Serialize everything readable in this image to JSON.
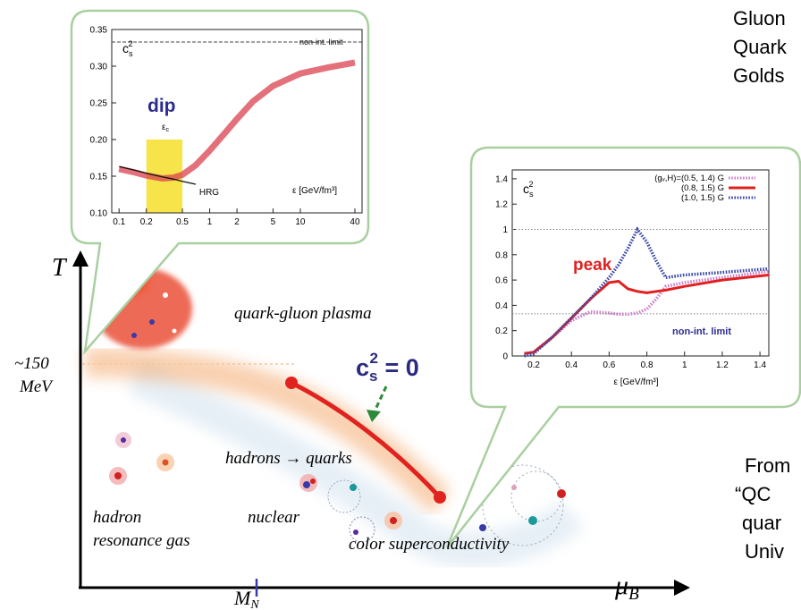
{
  "chart_data": [
    {
      "type": "line",
      "ylabel": {
        "main": "c",
        "sub": "s",
        "sup": "2"
      },
      "xlabel": "ε [GeV/fm³]",
      "annotations": {
        "dip": "dip",
        "eps_c": {
          "main": "ε",
          "sub": "c"
        },
        "limit": "non-int. limit"
      },
      "xscale": "log",
      "xlim": [
        0.083,
        48
      ],
      "ylim": [
        0.1,
        0.35
      ],
      "xticks": [
        0.1,
        0.2,
        0.5,
        1,
        2,
        5,
        10,
        40
      ],
      "yticks": [
        {
          "value": 0.1,
          "label": "0.10"
        },
        0.15,
        {
          "value": 0.2,
          "label": "0.20"
        },
        0.25,
        {
          "value": 0.3,
          "label": "0.30"
        },
        0.35
      ],
      "hlines": [
        0.333
      ],
      "highlight": {
        "xrange": [
          0.2,
          0.5
        ],
        "yrange": [
          0.1,
          0.2
        ],
        "color": "#f7e34a"
      },
      "x": [
        0.1,
        0.15,
        0.2,
        0.3,
        0.4,
        0.5,
        0.7,
        1,
        1.5,
        2,
        3,
        5,
        10,
        20,
        40
      ],
      "series": [
        {
          "color": "#d9404e",
          "style": "band",
          "values": [
            0.16,
            0.155,
            0.151,
            0.147,
            0.148,
            0.152,
            0.165,
            0.185,
            0.21,
            0.228,
            0.252,
            0.273,
            0.29,
            0.298,
            0.305
          ]
        },
        {
          "name": "HRG",
          "color": "#111111",
          "style": "solid",
          "values": [
            0.163,
            0.158,
            0.154,
            0.149,
            0.146,
            0.143,
            0.139,
            null,
            null,
            null,
            null,
            null,
            null,
            null,
            null
          ]
        }
      ]
    },
    {
      "type": "line",
      "ylabel": {
        "main": "c",
        "sub": "s",
        "sup": "2"
      },
      "xlabel": "ε [GeV/fm³]",
      "annotations": {
        "peak": "peak",
        "limit": "non-int. limit"
      },
      "xscale": "linear",
      "xlim": [
        0.086,
        1.447
      ],
      "ylim": [
        0,
        1.47
      ],
      "xticks": [
        0.2,
        0.4,
        0.6,
        0.8,
        1,
        1.2,
        1.4
      ],
      "yticks": [
        0,
        0.2,
        0.4,
        0.6,
        0.8,
        1,
        1.2,
        1.4
      ],
      "hlines": [
        1,
        0.333
      ],
      "x": [
        0.15,
        0.2,
        0.3,
        0.4,
        0.5,
        0.6,
        0.65,
        0.7,
        0.75,
        0.8,
        0.85,
        0.9,
        1.0,
        1.2,
        1.45
      ],
      "series": [
        {
          "name": "(gᵥ,H)=(0.5, 1.4) G",
          "color": "#cc80c8",
          "style": "dotted",
          "values": [
            0.02,
            0.03,
            0.15,
            0.28,
            0.35,
            0.34,
            0.33,
            0.33,
            0.34,
            0.37,
            0.45,
            0.55,
            0.58,
            0.62,
            0.67
          ]
        },
        {
          "name": "(0.8, 1.5) G",
          "color": "#e02020",
          "style": "solid",
          "values": [
            0.02,
            0.03,
            0.15,
            0.3,
            0.45,
            0.58,
            0.59,
            0.53,
            0.51,
            0.5,
            0.51,
            0.52,
            0.55,
            0.6,
            0.64
          ]
        },
        {
          "name": "(1.0, 1.5) G",
          "color": "#3a48a8",
          "style": "dotted",
          "values": [
            0,
            0.02,
            0.15,
            0.3,
            0.45,
            0.62,
            0.72,
            0.85,
            1.0,
            0.9,
            0.75,
            0.62,
            0.64,
            0.66,
            0.69
          ]
        }
      ]
    }
  ],
  "diagram": {
    "axis_T": "T",
    "axis_mu": {
      "main": "μ",
      "sub": "B"
    },
    "temperature": [
      "~150",
      "MeV"
    ],
    "mass": {
      "main": "M",
      "sub": "N"
    },
    "critical": {
      "main": "c",
      "sub": "s",
      "sup": "2",
      "rest": " = 0"
    },
    "regions": {
      "qgp": "quark-gluon plasma",
      "transition": "hadrons → quarks",
      "hrg": [
        "hadron",
        "resonance gas"
      ],
      "nuclear": "nuclear",
      "csc": "color superconductivity"
    }
  },
  "side_text": {
    "top": [
      "Gluon",
      "Quark",
      "Golds"
    ],
    "bottom": [
      "From",
      "“QC",
      "quar",
      "Univ"
    ]
  }
}
